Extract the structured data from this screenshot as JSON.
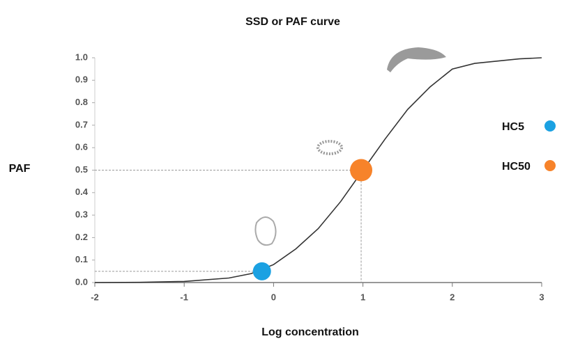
{
  "chart_data": {
    "type": "line",
    "title": "SSD or PAF curve",
    "x_label": "Log concentration",
    "y_label": "PAF",
    "xlim": [
      -2,
      3
    ],
    "ylim": [
      0,
      1
    ],
    "xticks": [
      -2,
      -1,
      0,
      1,
      2,
      3
    ],
    "yticks": [
      {
        "value": 0,
        "label": "0.0"
      },
      0.1,
      0.2,
      0.3,
      0.4,
      0.5,
      0.6,
      0.7,
      0.8,
      0.9,
      {
        "value": 1,
        "label": "1.0"
      }
    ],
    "curve": {
      "color": "#333333",
      "x": [
        -2,
        -1.5,
        -1,
        -0.5,
        -0.25,
        0,
        0.25,
        0.5,
        0.75,
        1,
        1.25,
        1.5,
        1.75,
        2,
        2.25,
        2.5,
        2.75,
        3
      ],
      "values": [
        0,
        0.001,
        0.005,
        0.02,
        0.04,
        0.08,
        0.15,
        0.24,
        0.36,
        0.5,
        0.64,
        0.77,
        0.87,
        0.95,
        0.975,
        0.985,
        0.995,
        1
      ]
    },
    "points": [
      {
        "name": "HC5",
        "x": -0.13,
        "y": 0.05,
        "color": "#1ba1e2",
        "vline": false
      },
      {
        "name": "HC50",
        "x": 0.98,
        "y": 0.5,
        "color": "#f7832a",
        "vline": true
      }
    ]
  }
}
